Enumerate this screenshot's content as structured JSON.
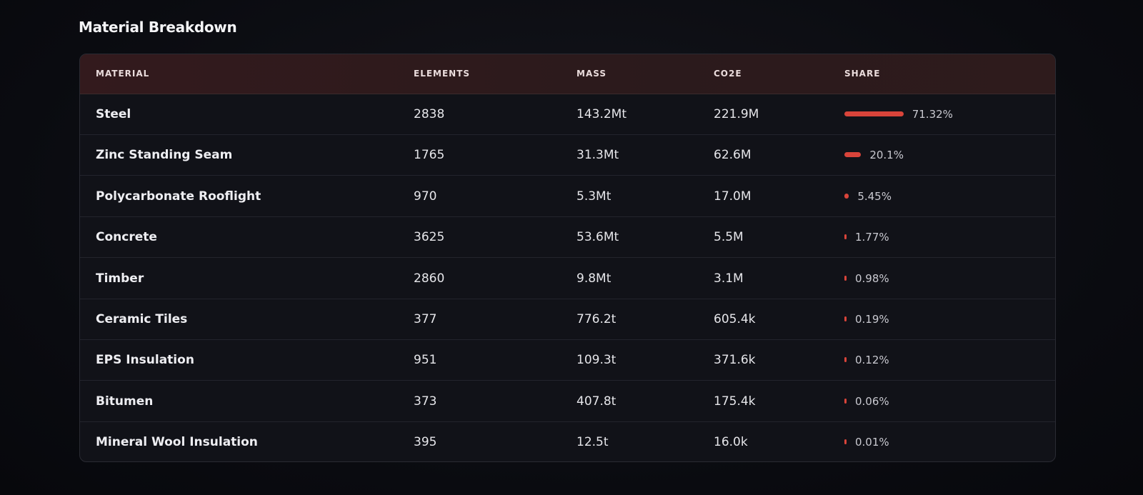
{
  "title": "Material Breakdown",
  "table": {
    "headers": [
      "MATERIAL",
      "ELEMENTS",
      "MASS",
      "CO2E",
      "SHARE"
    ],
    "rows": [
      {
        "material": "Steel",
        "elements": 2838,
        "mass": "143.2Mt",
        "co2e": "221.9M",
        "share": {
          "value": 71.32,
          "label": "71.32%"
        }
      },
      {
        "material": "Zinc Standing Seam",
        "elements": 1765,
        "mass": "31.3Mt",
        "co2e": "62.6M",
        "share": {
          "value": 20.1,
          "label": "20.1%"
        }
      },
      {
        "material": "Polycarbonate Rooflight",
        "elements": 970,
        "mass": "5.3Mt",
        "co2e": "17.0M",
        "share": {
          "value": 5.45,
          "label": "5.45%"
        }
      },
      {
        "material": "Concrete",
        "elements": 3625,
        "mass": "53.6Mt",
        "co2e": "5.5M",
        "share": {
          "value": 1.77,
          "label": "1.77%"
        }
      },
      {
        "material": "Timber",
        "elements": 2860,
        "mass": "9.8Mt",
        "co2e": "3.1M",
        "share": {
          "value": 0.98,
          "label": "0.98%"
        }
      },
      {
        "material": "Ceramic Tiles",
        "elements": 377,
        "mass": "776.2t",
        "co2e": "605.4k",
        "share": {
          "value": 0.19,
          "label": "0.19%"
        }
      },
      {
        "material": "EPS Insulation",
        "elements": 951,
        "mass": "109.3t",
        "co2e": "371.6k",
        "share": {
          "value": 0.12,
          "label": "0.12%"
        }
      },
      {
        "material": "Bitumen",
        "elements": 373,
        "mass": "407.8t",
        "co2e": "175.4k",
        "share": {
          "value": 0.06,
          "label": "0.06%"
        }
      },
      {
        "material": "Mineral Wool Insulation",
        "elements": 395,
        "mass": "12.5t",
        "co2e": "16.0k",
        "share": {
          "value": 0.01,
          "label": "0.01%"
        }
      }
    ]
  }
}
